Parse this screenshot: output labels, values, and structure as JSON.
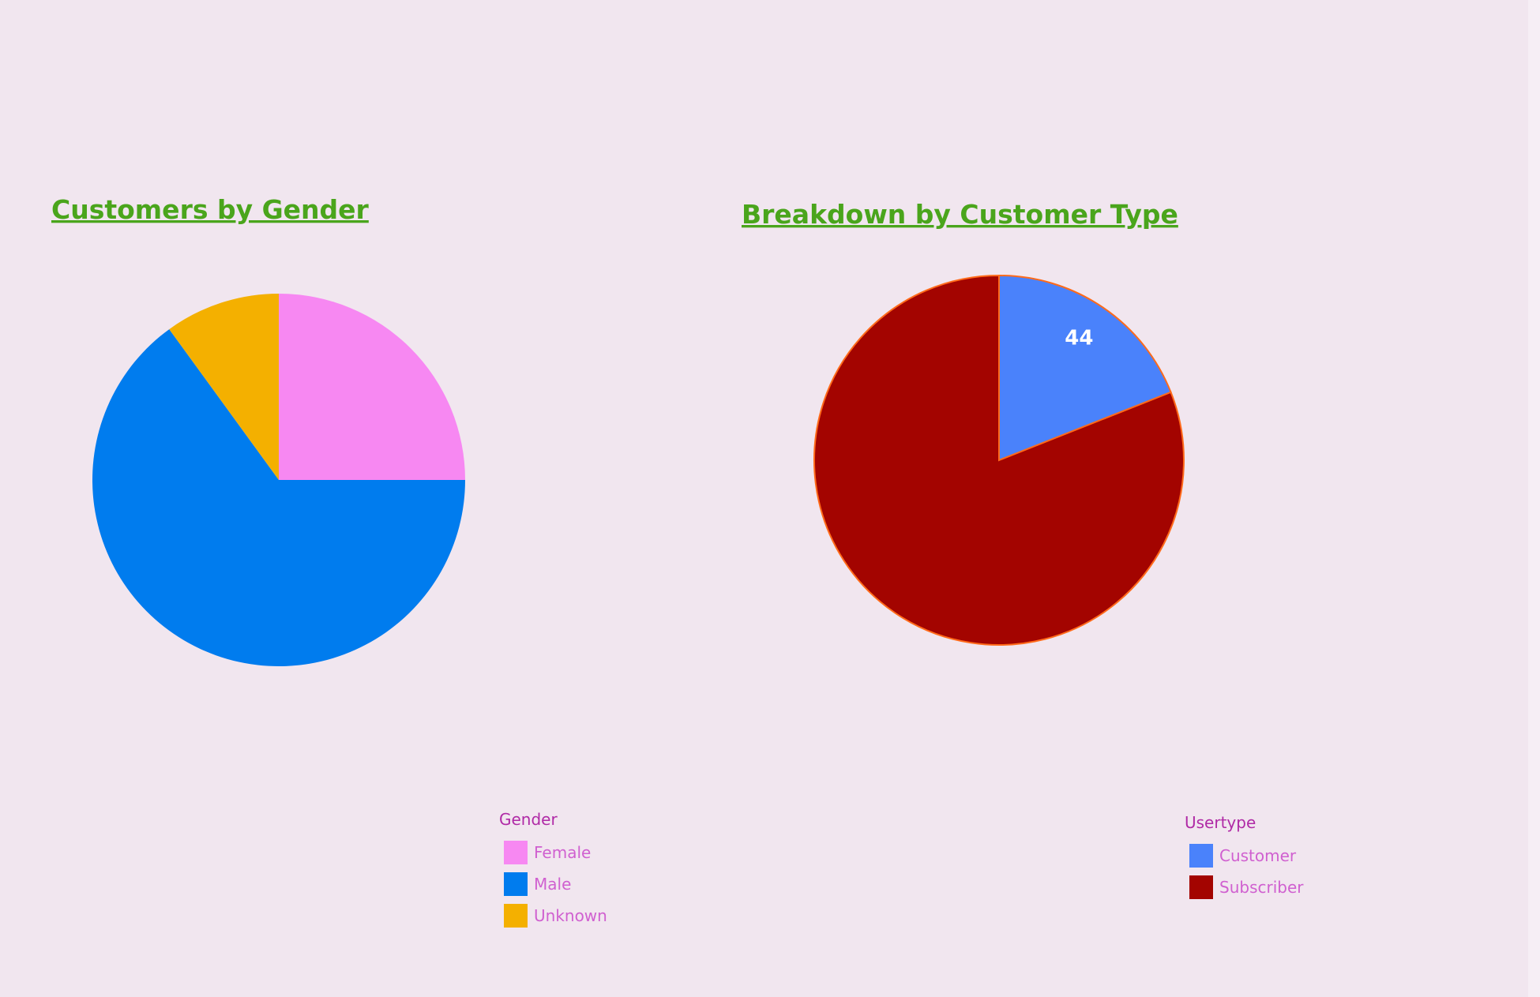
{
  "chart_data": [
    {
      "type": "pie",
      "title": "Customers by Gender",
      "legend_title": "Gender",
      "categories": [
        "Female",
        "Male",
        "Unknown"
      ],
      "values": [
        25,
        65,
        10
      ],
      "colors": [
        "#f788f2",
        "#007cee",
        "#f4b000"
      ]
    },
    {
      "type": "pie",
      "title": "Breakdown by Customer Type",
      "legend_title": "Usertype",
      "categories": [
        "Customer",
        "Subscriber"
      ],
      "values": [
        19,
        81
      ],
      "colors": [
        "#4a82fb",
        "#a30400"
      ],
      "annotation": "44"
    }
  ]
}
